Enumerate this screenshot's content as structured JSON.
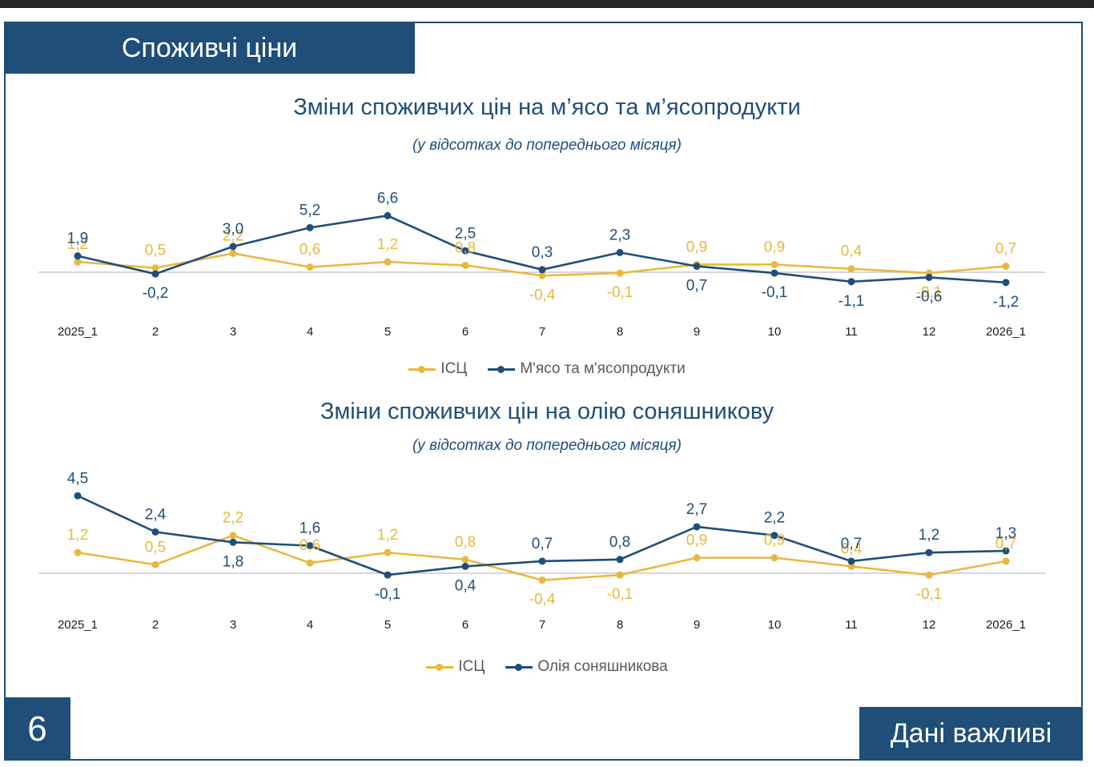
{
  "header": {
    "section_title": "Споживчі ціни"
  },
  "footer": {
    "page_number": "6",
    "tagline": "Дані важливі"
  },
  "colors": {
    "accent": "#1f4e79",
    "cpi": "#e8b83c",
    "series": "#1f4e79"
  },
  "chart_data": [
    {
      "type": "line",
      "title": "Зміни споживчих цін на м’ясо та м’ясопродукти",
      "subtitle": "(у відсотках до попереднього місяця)",
      "categories": [
        "2025_1",
        "2",
        "3",
        "4",
        "5",
        "6",
        "7",
        "8",
        "9",
        "10",
        "11",
        "12",
        "2026_1"
      ],
      "series": [
        {
          "name": "ІСЦ",
          "values": [
            1.2,
            0.5,
            2.2,
            0.6,
            1.2,
            0.8,
            -0.4,
            -0.1,
            0.9,
            0.9,
            0.4,
            -0.1,
            0.7
          ],
          "labels": [
            "1,2",
            "0,5",
            "2,2",
            "0,6",
            "1,2",
            "0,8",
            "-0,4",
            "-0,1",
            "0,9",
            "0,9",
            "0,4",
            "-0,1",
            "0,7"
          ]
        },
        {
          "name": "М'ясо та м'ясопродукти",
          "values": [
            1.9,
            -0.2,
            3.0,
            5.2,
            6.6,
            2.5,
            0.3,
            2.3,
            0.7,
            -0.1,
            -1.1,
            -0.6,
            -1.2
          ],
          "labels": [
            "1,9",
            "-0,2",
            "3,0",
            "5,2",
            "6,6",
            "2,5",
            "0,3",
            "2,3",
            "0,7",
            "-0,1",
            "-1,1",
            "-0,6",
            "-1,2"
          ]
        }
      ],
      "ylim": [
        -1.5,
        7.0
      ],
      "grid": false,
      "legend": "bottom"
    },
    {
      "type": "line",
      "title": "Зміни споживчих цін на олію соняшникову",
      "subtitle": "(у відсотках до попереднього місяця)",
      "categories": [
        "2025_1",
        "2",
        "3",
        "4",
        "5",
        "6",
        "7",
        "8",
        "9",
        "10",
        "11",
        "12",
        "2026_1"
      ],
      "series": [
        {
          "name": "ІСЦ",
          "values": [
            1.2,
            0.5,
            2.2,
            0.6,
            1.2,
            0.8,
            -0.4,
            -0.1,
            0.9,
            0.9,
            0.4,
            -0.1,
            0.7
          ],
          "labels": [
            "1,2",
            "0,5",
            "2,2",
            "0,6",
            "1,2",
            "0,8",
            "-0,4",
            "-0,1",
            "0,9",
            "0,9",
            "0,4",
            "-0,1",
            "0,7"
          ]
        },
        {
          "name": "Олія соняшникова",
          "values": [
            4.5,
            2.4,
            1.8,
            1.6,
            -0.1,
            0.4,
            0.7,
            0.8,
            2.7,
            2.2,
            0.7,
            1.2,
            1.3
          ],
          "labels": [
            "4,5",
            "2,4",
            "1,8",
            "1,6",
            "-0,1",
            "0,4",
            "0,7",
            "0,8",
            "2,7",
            "2,2",
            "0,7",
            "1,2",
            "1,3"
          ]
        }
      ],
      "ylim": [
        -1.0,
        5.0
      ],
      "grid": false,
      "legend": "bottom"
    }
  ]
}
